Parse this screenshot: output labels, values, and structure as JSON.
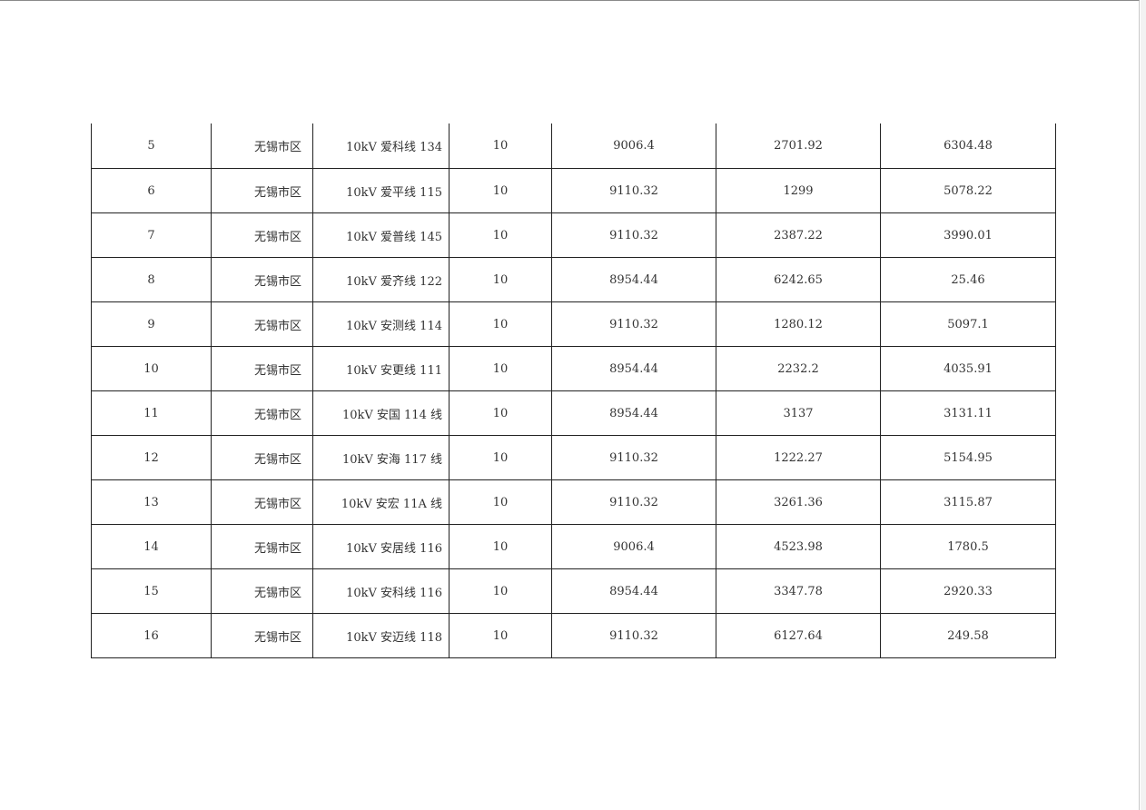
{
  "table": {
    "rows": [
      [
        "5",
        "无锡市区",
        "10kV 爱科线 134",
        "10",
        "9006.4",
        "2701.92",
        "6304.48"
      ],
      [
        "6",
        "无锡市区",
        "10kV 爱平线 115",
        "10",
        "9110.32",
        "1299",
        "5078.22"
      ],
      [
        "7",
        "无锡市区",
        "10kV 爱普线 145",
        "10",
        "9110.32",
        "2387.22",
        "3990.01"
      ],
      [
        "8",
        "无锡市区",
        "10kV 爱齐线 122",
        "10",
        "8954.44",
        "6242.65",
        "25.46"
      ],
      [
        "9",
        "无锡市区",
        "10kV 安测线 114",
        "10",
        "9110.32",
        "1280.12",
        "5097.1"
      ],
      [
        "10",
        "无锡市区",
        "10kV 安更线 111",
        "10",
        "8954.44",
        "2232.2",
        "4035.91"
      ],
      [
        "11",
        "无锡市区",
        "10kV 安国 114 线",
        "10",
        "8954.44",
        "3137",
        "3131.11"
      ],
      [
        "12",
        "无锡市区",
        "10kV 安海 117 线",
        "10",
        "9110.32",
        "1222.27",
        "5154.95"
      ],
      [
        "13",
        "无锡市区",
        "10kV 安宏 11A 线",
        "10",
        "9110.32",
        "3261.36",
        "3115.87"
      ],
      [
        "14",
        "无锡市区",
        "10kV 安居线 116",
        "10",
        "9006.4",
        "4523.98",
        "1780.5"
      ],
      [
        "15",
        "无锡市区",
        "10kV 安科线 116",
        "10",
        "8954.44",
        "3347.78",
        "2920.33"
      ],
      [
        "16",
        "无锡市区",
        "10kV 安迈线 118",
        "10",
        "9110.32",
        "6127.64",
        "249.58"
      ]
    ]
  }
}
